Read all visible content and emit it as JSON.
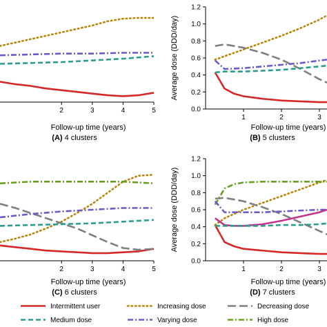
{
  "colors": {
    "intermittent": "#d62728",
    "increasing": "#b8860b",
    "decreasing": "#7f7f7f",
    "medium": "#2a9d8f",
    "varying": "#6a5acd",
    "high": "#6b9e1f",
    "new_cluster": "#c2358f"
  },
  "legend": [
    {
      "key": "intermittent",
      "label": "Intermittent user",
      "dash": "solid"
    },
    {
      "key": "increasing",
      "label": "Increasing dose",
      "dash": "dot"
    },
    {
      "key": "decreasing",
      "label": "Decreasing dose",
      "dash": "longdash"
    },
    {
      "key": "medium",
      "label": "Medium dose",
      "dash": "dash"
    },
    {
      "key": "varying",
      "label": "Varying dose",
      "dash": "dashdot"
    },
    {
      "key": "high",
      "label": "High dose",
      "dash": "dashdot"
    }
  ],
  "chart_data": [
    {
      "type": "line",
      "panel": "A",
      "caption_letter": "(A)",
      "caption_text": " 4 clusters",
      "xlabel": "Follow-up time (years)",
      "ylabel": "",
      "xlim": [
        0,
        5
      ],
      "ylim": [
        0,
        1.2
      ],
      "xticks": [
        2,
        3,
        4,
        5
      ],
      "xtick_labels": [
        "2",
        "3",
        "4",
        "5"
      ],
      "yticks": [],
      "ytick_labels": [],
      "series": [
        {
          "key": "intermittent",
          "x": [
            0,
            0.5,
            1,
            1.5,
            2,
            2.5,
            3,
            3.5,
            4,
            4.5,
            5
          ],
          "y": [
            0.24,
            0.21,
            0.19,
            0.16,
            0.14,
            0.12,
            0.1,
            0.08,
            0.07,
            0.08,
            0.11
          ]
        },
        {
          "key": "increasing",
          "x": [
            0,
            0.5,
            1,
            1.5,
            2,
            2.5,
            3,
            3.5,
            4,
            4.5,
            5
          ],
          "y": [
            0.66,
            0.7,
            0.74,
            0.78,
            0.82,
            0.86,
            0.9,
            0.95,
            0.98,
            0.99,
            0.99
          ]
        },
        {
          "key": "varying",
          "x": [
            0,
            1,
            2,
            3,
            4,
            5
          ],
          "y": [
            0.55,
            0.56,
            0.57,
            0.57,
            0.58,
            0.58
          ]
        },
        {
          "key": "medium",
          "x": [
            0,
            1,
            2,
            3,
            4,
            5
          ],
          "y": [
            0.45,
            0.46,
            0.47,
            0.49,
            0.51,
            0.54
          ]
        }
      ]
    },
    {
      "type": "line",
      "panel": "B",
      "caption_letter": "(B)",
      "caption_text": " 5 clusters",
      "xlabel": "Follow-up time (years)",
      "ylabel": "Average dose (DDD/day)",
      "xlim": [
        0,
        3.2
      ],
      "ylim": [
        0,
        1.2
      ],
      "xticks": [
        1,
        2,
        3
      ],
      "xtick_labels": [
        "1",
        "2",
        "3"
      ],
      "yticks": [
        0,
        0.2,
        0.4,
        0.6,
        0.8,
        1.0,
        1.2
      ],
      "ytick_labels": [
        "0.0",
        "0.2",
        "0.4",
        "0.6",
        "0.8",
        "1.0",
        "1.2"
      ],
      "series": [
        {
          "key": "intermittent",
          "x": [
            0.25,
            0.5,
            0.75,
            1,
            1.5,
            2,
            2.5,
            3,
            3.2
          ],
          "y": [
            0.43,
            0.24,
            0.18,
            0.15,
            0.12,
            0.1,
            0.09,
            0.08,
            0.08
          ]
        },
        {
          "key": "increasing",
          "x": [
            0.25,
            0.5,
            1,
            1.5,
            2,
            2.5,
            3,
            3.2
          ],
          "y": [
            0.58,
            0.62,
            0.7,
            0.78,
            0.86,
            0.95,
            1.05,
            1.1
          ]
        },
        {
          "key": "decreasing",
          "x": [
            0.25,
            0.5,
            0.75,
            1,
            1.5,
            2,
            2.5,
            3,
            3.2
          ],
          "y": [
            0.74,
            0.76,
            0.74,
            0.72,
            0.66,
            0.58,
            0.47,
            0.35,
            0.31
          ]
        },
        {
          "key": "varying",
          "x": [
            0.25,
            0.5,
            1,
            1.5,
            2,
            2.5,
            3,
            3.2
          ],
          "y": [
            0.57,
            0.47,
            0.48,
            0.5,
            0.52,
            0.54,
            0.57,
            0.58
          ]
        },
        {
          "key": "medium",
          "x": [
            0.25,
            0.5,
            1,
            1.5,
            2,
            2.5,
            3,
            3.2
          ],
          "y": [
            0.43,
            0.44,
            0.44,
            0.45,
            0.46,
            0.48,
            0.5,
            0.51
          ]
        }
      ]
    },
    {
      "type": "line",
      "panel": "C",
      "caption_letter": "(C)",
      "caption_text": " 6 clusters",
      "xlabel": "Follow-up time (years)",
      "ylabel": "",
      "xlim": [
        0,
        5
      ],
      "ylim": [
        0,
        1.2
      ],
      "xticks": [
        2,
        3,
        4,
        5
      ],
      "xtick_labels": [
        "2",
        "3",
        "4",
        "5"
      ],
      "yticks": [],
      "ytick_labels": [],
      "series": [
        {
          "key": "intermittent",
          "x": [
            0,
            0.5,
            1,
            1.5,
            2,
            2.5,
            3,
            3.5,
            4,
            4.5,
            5
          ],
          "y": [
            0.18,
            0.16,
            0.14,
            0.12,
            0.11,
            0.1,
            0.09,
            0.09,
            0.1,
            0.11,
            0.14
          ]
        },
        {
          "key": "increasing",
          "x": [
            0,
            0.5,
            1,
            1.5,
            2,
            2.5,
            3,
            3.5,
            4,
            4.5,
            5
          ],
          "y": [
            0.22,
            0.26,
            0.31,
            0.38,
            0.46,
            0.56,
            0.67,
            0.8,
            0.93,
            1.0,
            1.01
          ]
        },
        {
          "key": "decreasing",
          "x": [
            0,
            0.5,
            1,
            1.5,
            2,
            2.5,
            3,
            3.5,
            4,
            4.5,
            5
          ],
          "y": [
            0.67,
            0.62,
            0.56,
            0.5,
            0.44,
            0.38,
            0.3,
            0.22,
            0.15,
            0.13,
            0.14
          ]
        },
        {
          "key": "high",
          "x": [
            0,
            1,
            2,
            3,
            4,
            4.5,
            5
          ],
          "y": [
            0.91,
            0.93,
            0.93,
            0.93,
            0.93,
            0.92,
            0.91
          ]
        },
        {
          "key": "varying",
          "x": [
            0,
            1,
            2,
            3,
            4,
            5
          ],
          "y": [
            0.51,
            0.55,
            0.58,
            0.6,
            0.62,
            0.62
          ]
        },
        {
          "key": "medium",
          "x": [
            0,
            1,
            2,
            3,
            4,
            5
          ],
          "y": [
            0.41,
            0.42,
            0.43,
            0.44,
            0.46,
            0.48
          ]
        }
      ]
    },
    {
      "type": "line",
      "panel": "D",
      "caption_letter": "(D)",
      "caption_text": " 7 clusters",
      "xlabel": "Follow-up time (years)",
      "ylabel": "Average dose (DDD/day)",
      "xlim": [
        0,
        3.2
      ],
      "ylim": [
        0,
        1.2
      ],
      "xticks": [
        1,
        2,
        3
      ],
      "xtick_labels": [
        "1",
        "2",
        "3"
      ],
      "yticks": [
        0,
        0.2,
        0.4,
        0.6,
        0.8,
        1.0,
        1.2
      ],
      "ytick_labels": [
        "0.0",
        "0.2",
        "0.4",
        "0.6",
        "0.8",
        "1.0",
        "1.2"
      ],
      "series": [
        {
          "key": "intermittent",
          "x": [
            0.25,
            0.5,
            0.75,
            1,
            1.5,
            2,
            2.5,
            3,
            3.2
          ],
          "y": [
            0.42,
            0.22,
            0.17,
            0.14,
            0.12,
            0.1,
            0.09,
            0.08,
            0.08
          ]
        },
        {
          "key": "increasing",
          "x": [
            0.25,
            0.5,
            1,
            1.5,
            2,
            2.5,
            3,
            3.2
          ],
          "y": [
            0.42,
            0.5,
            0.6,
            0.68,
            0.76,
            0.84,
            0.92,
            0.95
          ]
        },
        {
          "key": "decreasing",
          "x": [
            0.25,
            0.5,
            0.75,
            1,
            1.5,
            2,
            2.5,
            3,
            3.2
          ],
          "y": [
            0.73,
            0.74,
            0.72,
            0.7,
            0.63,
            0.55,
            0.45,
            0.35,
            0.31
          ]
        },
        {
          "key": "high",
          "x": [
            0.25,
            0.5,
            0.75,
            1,
            1.5,
            2,
            2.5,
            3,
            3.2
          ],
          "y": [
            0.66,
            0.85,
            0.9,
            0.92,
            0.93,
            0.93,
            0.93,
            0.93,
            0.93
          ]
        },
        {
          "key": "varying",
          "x": [
            0.25,
            0.5,
            1,
            1.5,
            2,
            2.5,
            3,
            3.2
          ],
          "y": [
            0.7,
            0.57,
            0.57,
            0.57,
            0.58,
            0.59,
            0.6,
            0.6
          ]
        },
        {
          "key": "new_cluster",
          "x": [
            0.25,
            0.5,
            0.75,
            1,
            1.5,
            2,
            2.5,
            3,
            3.2
          ],
          "y": [
            0.5,
            0.42,
            0.41,
            0.41,
            0.43,
            0.47,
            0.52,
            0.57,
            0.6
          ]
        },
        {
          "key": "medium",
          "x": [
            0.25,
            0.5,
            1,
            1.5,
            2,
            2.5,
            3,
            3.2
          ],
          "y": [
            0.41,
            0.41,
            0.41,
            0.41,
            0.42,
            0.42,
            0.43,
            0.44
          ]
        }
      ]
    }
  ]
}
